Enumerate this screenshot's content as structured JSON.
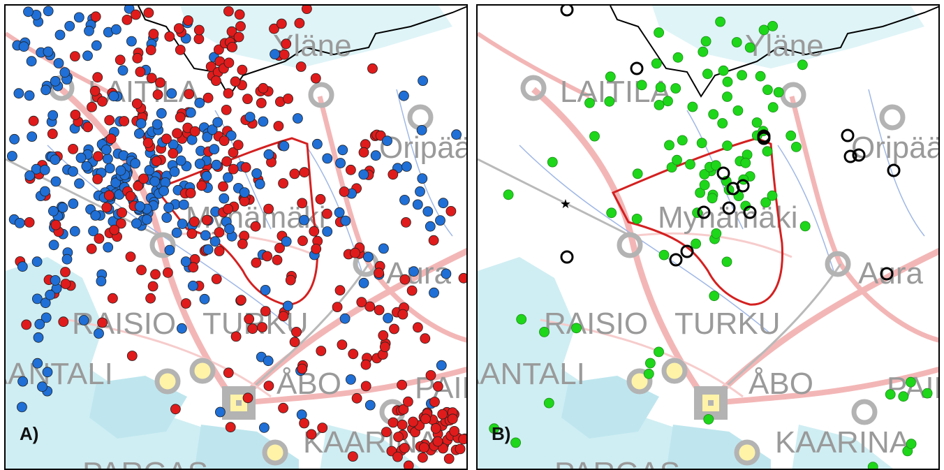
{
  "panels": [
    {
      "label": "A)",
      "places": [
        "Yläne",
        "LAITILA",
        "Oripää",
        "Mynämäki",
        "Aura",
        "RAISIO",
        "TURKU",
        "NAANTALI",
        "ÅBO",
        "PARGAS",
        "KAARINA",
        "PAIMIO"
      ]
    },
    {
      "label": "B)",
      "places": [
        "Yläne",
        "LAITILA",
        "Oripää",
        "Mynämäki",
        "Aura",
        "RAISIO",
        "TURKU",
        "NAANTALI",
        "ÅBO",
        "PARGAS",
        "KAARINA",
        "PAIMIO"
      ]
    }
  ],
  "legend": {
    "red_point_color": "#e01b1b",
    "blue_point_color": "#1f6fd6",
    "green_point_color": "#1ed61a",
    "open_circle_color": "#000000",
    "boundary_color": "#d42020"
  }
}
